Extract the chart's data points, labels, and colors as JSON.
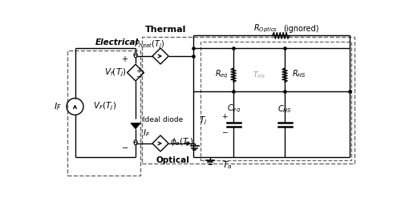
{
  "title": "Thermal",
  "electrical_label": "Electrical",
  "optical_label": "Optical",
  "bg_color": "#ffffff",
  "line_color": "#000000",
  "dashed_color": "#666666",
  "gray_color": "#999999",
  "r_optics_label": "$R_{Optics}$",
  "r_optics_ignored": "(ignored)",
  "r_eq_label": "$R_{eq}$",
  "r_hs_label": "$R_{HS}$",
  "t_hs_label": "$T_{HS}$",
  "c_eq_label": "$C_{eq}$",
  "c_hs_label": "$C_{HS}$",
  "t_j_label": "$T_j$",
  "t_a_label": "$T_a$",
  "p_heat_label": "$P_{heat}(T_j)$",
  "phi_e_label": "$\\phi_e(T_j)$",
  "vf_label": "$V_f(T_j)$",
  "vF_label": "$V_F(T_j)$",
  "iF_label": "$I_F$",
  "ideal_diode_label": "Ideal diode"
}
